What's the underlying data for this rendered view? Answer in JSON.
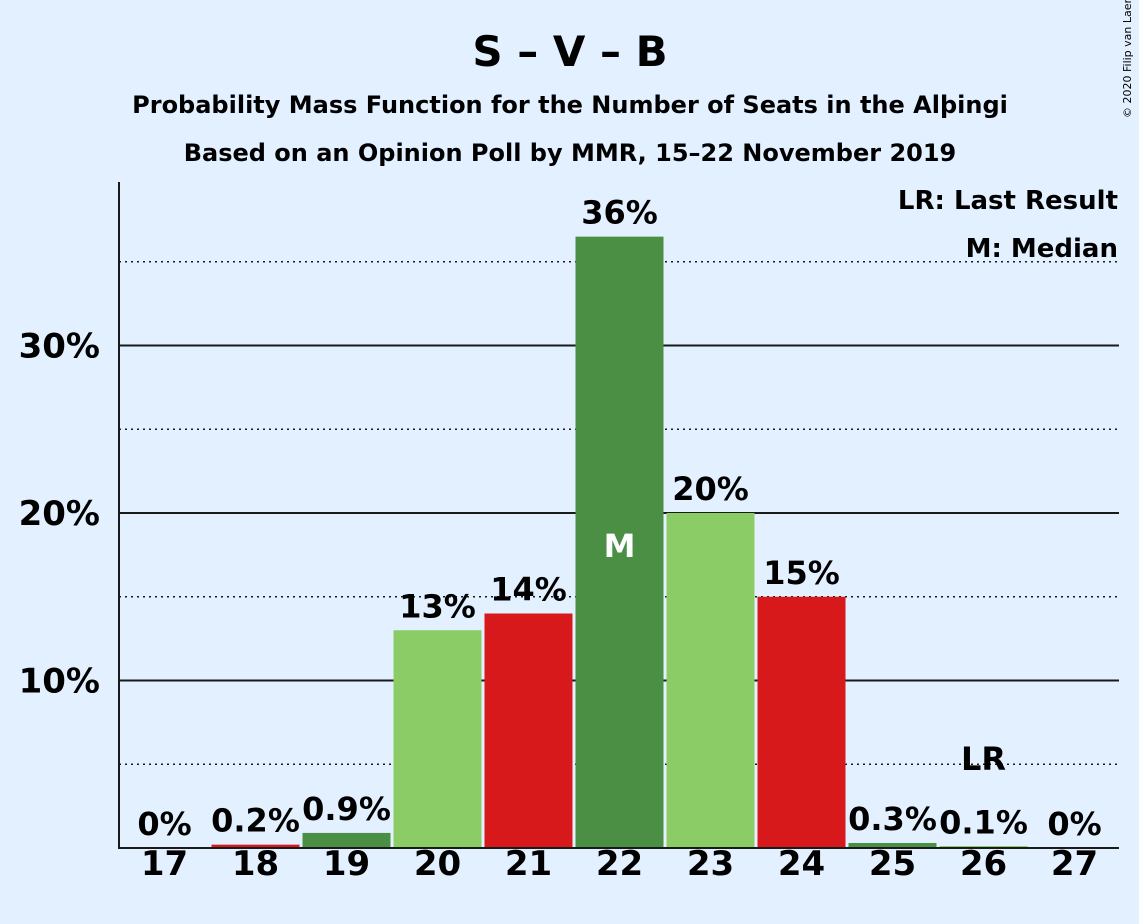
{
  "chart_data": {
    "type": "bar",
    "title": "S – V – B",
    "subtitle1": "Probability Mass Function for the Number of Seats in the Alþingi",
    "subtitle2": "Based on an Opinion Poll by MMR, 15–22 November 2019",
    "copyright": "© 2020 Filip van Laenen",
    "categories": [
      "17",
      "18",
      "19",
      "20",
      "21",
      "22",
      "23",
      "24",
      "25",
      "26",
      "27"
    ],
    "values": [
      0,
      0.2,
      0.9,
      13,
      14,
      36.5,
      20,
      15,
      0.3,
      0.1,
      0
    ],
    "value_labels": [
      "0%",
      "0.2%",
      "0.9%",
      "13%",
      "14%",
      "36%",
      "20%",
      "15%",
      "0.3%",
      "0.1%",
      "0%"
    ],
    "bar_colors": [
      "#d7191c",
      "#d7191c",
      "#4a8f44",
      "#8ccc66",
      "#d7191c",
      "#4a8f44",
      "#8ccc66",
      "#d7191c",
      "#4a8f44",
      "#8ccc66",
      "#d7191c"
    ],
    "ylim": [
      0,
      38
    ],
    "yticks": [
      10,
      20,
      30
    ],
    "ytick_labels": [
      "10%",
      "20%",
      "30%"
    ],
    "minor_gridlines": [
      5,
      15,
      25,
      35
    ],
    "median_index": 5,
    "median_marker": "M",
    "last_result_index": 9,
    "last_result_marker": "LR",
    "legend": [
      "LR: Last Result",
      "M: Median"
    ],
    "legend_position": "top-right"
  }
}
